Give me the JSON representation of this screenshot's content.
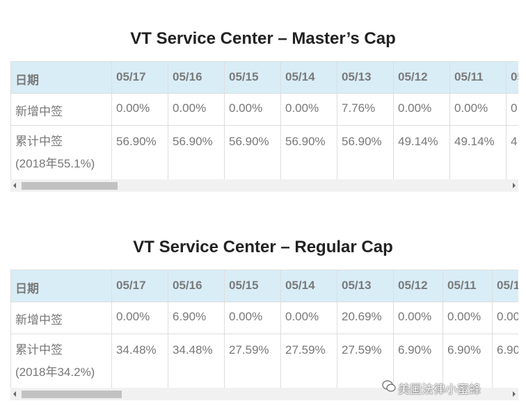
{
  "tables": [
    {
      "title": "VT Service Center – Master’s Cap",
      "header": [
        "日期",
        "05/17",
        "05/16",
        "05/15",
        "05/14",
        "05/13",
        "05/12",
        "05/11",
        "05"
      ],
      "widths": [
        145,
        81,
        81,
        81,
        81,
        81,
        81,
        81,
        81
      ],
      "rows": [
        {
          "label": [
            "新增中签"
          ],
          "values": [
            "0.00%",
            "0.00%",
            "0.00%",
            "0.00%",
            "7.76%",
            "0.00%",
            "0.00%",
            "0"
          ]
        },
        {
          "label": [
            "累计中签",
            "(2018年55.1%)"
          ],
          "values": [
            "56.90%",
            "56.90%",
            "56.90%",
            "56.90%",
            "56.90%",
            "49.14%",
            "49.14%",
            "4"
          ]
        }
      ]
    },
    {
      "title": "VT Service Center – Regular Cap",
      "header": [
        "日期",
        "05/17",
        "05/16",
        "05/15",
        "05/14",
        "05/13",
        "05/12",
        "05/11",
        "05/1"
      ],
      "widths": [
        145,
        81,
        81,
        81,
        81,
        81,
        71,
        71,
        71
      ],
      "rows": [
        {
          "label": [
            "新增中签"
          ],
          "values": [
            "0.00%",
            "6.90%",
            "0.00%",
            "0.00%",
            "20.69%",
            "0.00%",
            "0.00%",
            "0.00"
          ]
        },
        {
          "label": [
            "累计中签",
            "(2018年34.2%)"
          ],
          "values": [
            "34.48%",
            "34.48%",
            "27.59%",
            "27.59%",
            "27.59%",
            "6.90%",
            "6.90%",
            "6.90"
          ]
        }
      ]
    }
  ],
  "watermark": "美国法律小蜜蜂"
}
